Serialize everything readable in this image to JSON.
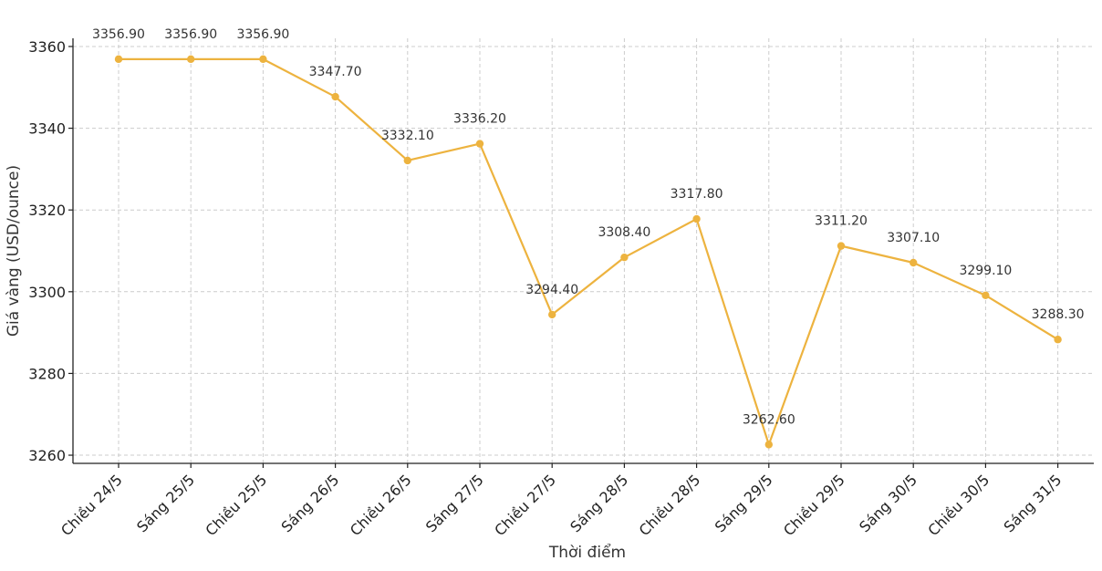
{
  "chart_data": {
    "type": "line",
    "title": "",
    "xlabel": "Thời điểm",
    "ylabel": "Giá vàng (USD/ounce)",
    "ylim": [
      3258,
      3362
    ],
    "yticks": [
      3260,
      3280,
      3300,
      3320,
      3340,
      3360
    ],
    "grid": true,
    "line_color": "#EDB33F",
    "categories": [
      "Chiều 24/5",
      "Sáng 25/5",
      "Chiều 25/5",
      "Sáng 26/5",
      "Chiều 26/5",
      "Sáng 27/5",
      "Chiều 27/5",
      "Sáng 28/5",
      "Chiều 28/5",
      "Sáng 29/5",
      "Chiều 29/5",
      "Sáng 30/5",
      "Chiều 30/5",
      "Sáng 31/5"
    ],
    "values": [
      3356.9,
      3356.9,
      3356.9,
      3347.7,
      3332.1,
      3336.2,
      3294.4,
      3308.4,
      3317.8,
      3262.6,
      3311.2,
      3307.1,
      3299.1,
      3288.3
    ],
    "data_labels": [
      "3356.90",
      "3356.90",
      "3356.90",
      "3347.70",
      "3332.10",
      "3336.20",
      "3294.40",
      "3308.40",
      "3317.80",
      "3262.60",
      "3311.20",
      "3307.10",
      "3299.10",
      "3288.30"
    ]
  }
}
